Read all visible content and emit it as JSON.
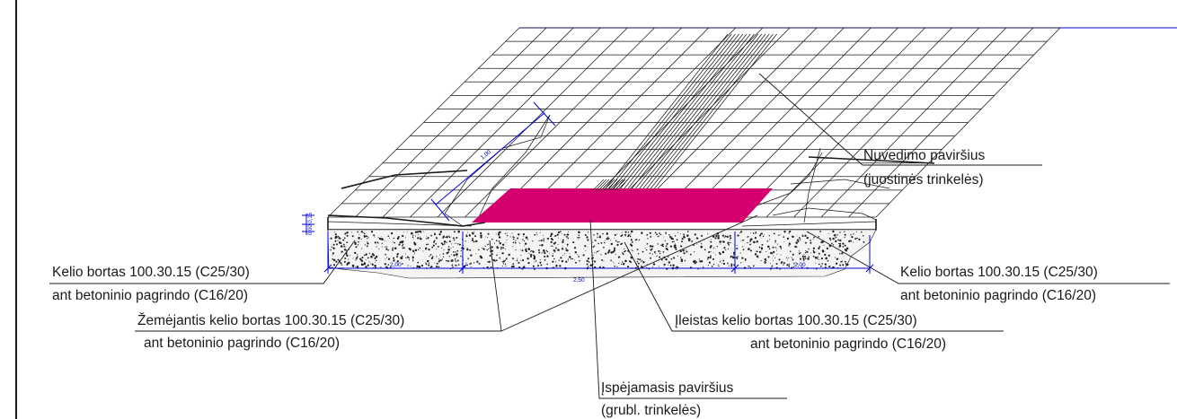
{
  "colors": {
    "warning_surface": "#d4006e",
    "dimension": "#0000dd",
    "ink": "#1a1a1a"
  },
  "labels": {
    "nuvedimo_line1": "Nuvedimo paviršius",
    "nuvedimo_line2": "(juostinės trinkelės)",
    "left_curb_line1": "Kelio bortas 100.30.15 (C25/30)",
    "left_curb_line2": "ant betoninio pagrindo (C16/20)",
    "right_curb_line1": "Kelio bortas 100.30.15 (C25/30)",
    "right_curb_line2": "ant betoninio pagrindo (C16/20)",
    "lowering_curb_line1": "Žemėjantis kelio bortas 100.30.15 (C25/30)",
    "lowering_curb_line2": "ant betoninio pagrindo (C16/20)",
    "sunk_curb_line1": "Įleistas kelio bortas 100.30.15 (C25/30)",
    "sunk_curb_line2": "ant betoninio pagrindo (C16/20)",
    "warning_line1": "Įspėjamasis paviršius",
    "warning_line2": "(grubl. trinkelės)"
  },
  "dimensions": {
    "ramp_length": "1,00",
    "left_segment": "2,00",
    "middle_segment": "2,50",
    "right_segment": "2,00",
    "curb_heights": "0,00 0,15"
  }
}
